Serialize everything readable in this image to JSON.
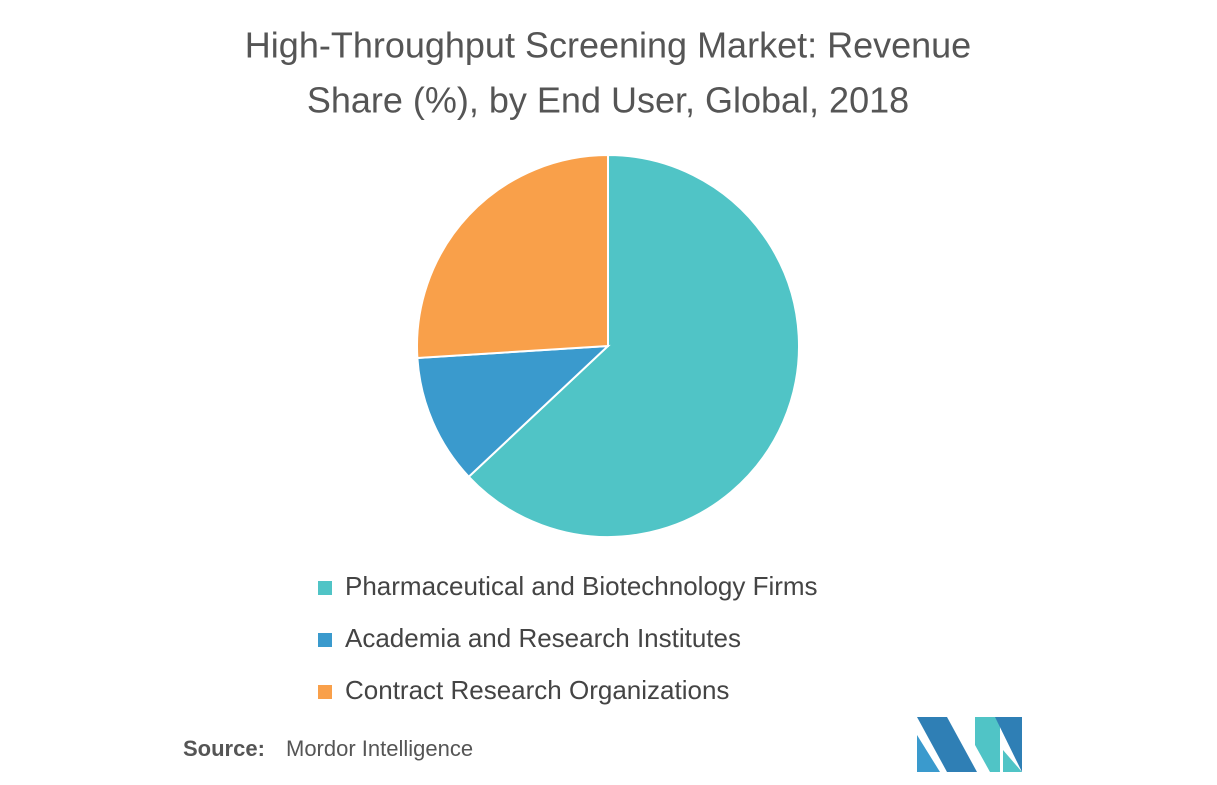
{
  "chart_data": {
    "type": "pie",
    "title": [
      "High-Throughput Screening Market: Revenue",
      "Share (%), by End User, Global, 2018"
    ],
    "categories": [
      "Pharmaceutical and Biotechnology Firms",
      "Academia and Research Institutes",
      "Contract Research Organizations"
    ],
    "values": [
      63,
      11,
      26
    ],
    "colors": [
      "#50c4c6",
      "#3a9acd",
      "#f9a04a"
    ],
    "source_label": "Source:",
    "source": "Mordor Intelligence"
  }
}
